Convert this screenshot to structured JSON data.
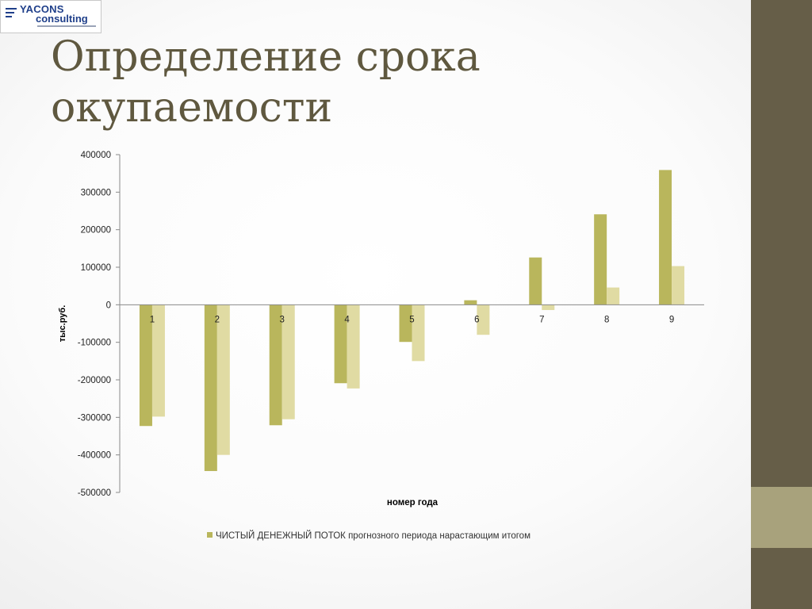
{
  "slide": {
    "title_line1": "Определение срока",
    "title_line2": "окупаемости"
  },
  "logo": {
    "top_text": "YACONS",
    "bottom_text": "consulting",
    "color": "#1f3f8a"
  },
  "colors": {
    "series1": "#b9b65c",
    "series2": "#e0dba3",
    "band": "#665e48",
    "band_light": "#a8a27c",
    "title": "#5f583f"
  },
  "chart_data": {
    "type": "bar",
    "categories": [
      "1",
      "2",
      "3",
      "4",
      "5",
      "6",
      "7",
      "8",
      "9"
    ],
    "series": [
      {
        "values": [
          -323000,
          -443000,
          -321000,
          -209000,
          -99000,
          12000,
          126000,
          241000,
          359000
        ]
      },
      {
        "values": [
          -298000,
          -400000,
          -305000,
          -223000,
          -150000,
          -80000,
          -14000,
          46000,
          103000
        ]
      }
    ],
    "xlabel": "номер года",
    "ylabel": "тыс.руб.",
    "ylim": [
      -500000,
      400000
    ],
    "yticks": [
      400000,
      300000,
      200000,
      100000,
      0,
      -100000,
      -200000,
      -300000,
      -400000,
      -500000
    ],
    "legend_text": "ЧИСТЫЙ ДЕНЕЖНЫЙ ПОТОК прогнозного периода нарастающим итогом",
    "legend_position": "bottom",
    "grid": false
  }
}
